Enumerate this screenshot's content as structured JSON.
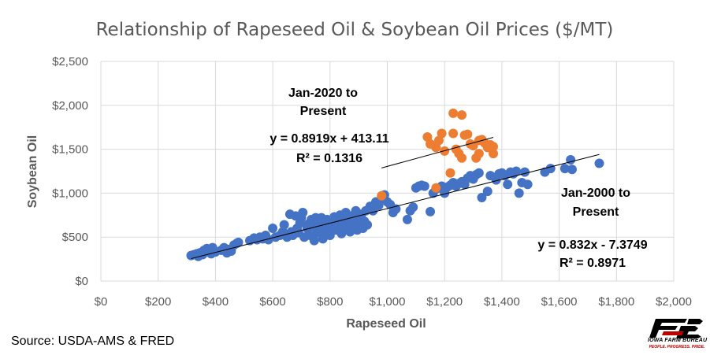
{
  "chart_data": {
    "type": "scatter",
    "title": "Relationship of Rapeseed Oil & Soybean Oil Prices ($/MT)",
    "xlabel": "Rapeseed Oil",
    "ylabel": "Soybean Oil",
    "xlim": [
      0,
      2000
    ],
    "ylim": [
      0,
      2500
    ],
    "xticks": [
      0,
      200,
      400,
      600,
      800,
      1000,
      1200,
      1400,
      1600,
      1800,
      2000
    ],
    "yticks": [
      0,
      500,
      1000,
      1500,
      2000,
      2500
    ],
    "xtick_labels": [
      "$0",
      "$200",
      "$400",
      "$600",
      "$800",
      "$1,000",
      "$1,200",
      "$1,400",
      "$1,600",
      "$1,800",
      "$2,000"
    ],
    "ytick_labels": [
      "$0",
      "$500",
      "$1,000",
      "$1,500",
      "$2,000",
      "$2,500"
    ],
    "grid": {
      "vertical": true,
      "horizontal": true
    },
    "series": [
      {
        "color": "#4472C4",
        "points": [
          [
            315,
            290
          ],
          [
            325,
            300
          ],
          [
            335,
            310
          ],
          [
            340,
            280
          ],
          [
            345,
            320
          ],
          [
            355,
            300
          ],
          [
            360,
            350
          ],
          [
            365,
            330
          ],
          [
            370,
            370
          ],
          [
            375,
            340
          ],
          [
            380,
            360
          ],
          [
            385,
            310
          ],
          [
            390,
            380
          ],
          [
            400,
            330
          ],
          [
            420,
            350
          ],
          [
            430,
            380
          ],
          [
            440,
            320
          ],
          [
            445,
            360
          ],
          [
            455,
            340
          ],
          [
            465,
            410
          ],
          [
            475,
            430
          ],
          [
            480,
            440
          ],
          [
            520,
            460
          ],
          [
            535,
            490
          ],
          [
            545,
            470
          ],
          [
            555,
            500
          ],
          [
            565,
            480
          ],
          [
            575,
            520
          ],
          [
            585,
            470
          ],
          [
            600,
            600
          ],
          [
            610,
            500
          ],
          [
            625,
            520
          ],
          [
            635,
            560
          ],
          [
            640,
            640
          ],
          [
            650,
            500
          ],
          [
            660,
            760
          ],
          [
            665,
            560
          ],
          [
            670,
            520
          ],
          [
            680,
            740
          ],
          [
            685,
            600
          ],
          [
            690,
            550
          ],
          [
            695,
            660
          ],
          [
            700,
            720
          ],
          [
            705,
            780
          ],
          [
            710,
            500
          ],
          [
            720,
            600
          ],
          [
            725,
            650
          ],
          [
            730,
            520
          ],
          [
            735,
            700
          ],
          [
            740,
            620
          ],
          [
            745,
            460
          ],
          [
            750,
            720
          ],
          [
            755,
            550
          ],
          [
            760,
            680
          ],
          [
            765,
            600
          ],
          [
            770,
            720
          ],
          [
            775,
            480
          ],
          [
            780,
            650
          ],
          [
            785,
            550
          ],
          [
            790,
            700
          ],
          [
            795,
            600
          ],
          [
            800,
            520
          ],
          [
            805,
            680
          ],
          [
            810,
            640
          ],
          [
            815,
            730
          ],
          [
            820,
            580
          ],
          [
            825,
            700
          ],
          [
            830,
            620
          ],
          [
            835,
            750
          ],
          [
            840,
            540
          ],
          [
            845,
            680
          ],
          [
            850,
            600
          ],
          [
            855,
            780
          ],
          [
            860,
            640
          ],
          [
            865,
            700
          ],
          [
            870,
            560
          ],
          [
            875,
            740
          ],
          [
            880,
            620
          ],
          [
            885,
            680
          ],
          [
            890,
            800
          ],
          [
            895,
            580
          ],
          [
            900,
            720
          ],
          [
            905,
            650
          ],
          [
            910,
            760
          ],
          [
            915,
            600
          ],
          [
            920,
            680
          ],
          [
            925,
            800
          ],
          [
            930,
            640
          ],
          [
            940,
            850
          ],
          [
            950,
            800
          ],
          [
            960,
            900
          ],
          [
            970,
            860
          ],
          [
            980,
            940
          ],
          [
            990,
            980
          ],
          [
            1000,
            900
          ],
          [
            1010,
            870
          ],
          [
            1020,
            780
          ],
          [
            1030,
            820
          ],
          [
            1070,
            700
          ],
          [
            1080,
            800
          ],
          [
            1090,
            840
          ],
          [
            1100,
            1060
          ],
          [
            1110,
            1080
          ],
          [
            1120,
            1090
          ],
          [
            1130,
            1080
          ],
          [
            1150,
            790
          ],
          [
            1160,
            1000
          ],
          [
            1170,
            1050
          ],
          [
            1180,
            1060
          ],
          [
            1190,
            1080
          ],
          [
            1200,
            1000
          ],
          [
            1210,
            1070
          ],
          [
            1220,
            1090
          ],
          [
            1230,
            1120
          ],
          [
            1240,
            1080
          ],
          [
            1250,
            1110
          ],
          [
            1260,
            1130
          ],
          [
            1270,
            1100
          ],
          [
            1280,
            1170
          ],
          [
            1290,
            1200
          ],
          [
            1300,
            1160
          ],
          [
            1310,
            1210
          ],
          [
            1320,
            1230
          ],
          [
            1330,
            950
          ],
          [
            1350,
            1020
          ],
          [
            1360,
            1200
          ],
          [
            1380,
            1150
          ],
          [
            1390,
            1220
          ],
          [
            1400,
            1230
          ],
          [
            1410,
            1200
          ],
          [
            1420,
            1100
          ],
          [
            1430,
            1240
          ],
          [
            1440,
            1220
          ],
          [
            1450,
            1250
          ],
          [
            1460,
            1000
          ],
          [
            1470,
            1120
          ],
          [
            1480,
            1240
          ],
          [
            1490,
            1100
          ],
          [
            1550,
            1240
          ],
          [
            1570,
            1280
          ],
          [
            1620,
            1280
          ],
          [
            1640,
            1380
          ],
          [
            1645,
            1270
          ],
          [
            1740,
            1340
          ]
        ]
      },
      {
        "color": "#ED7D31",
        "points": [
          [
            980,
            970
          ],
          [
            1170,
            1060
          ],
          [
            1140,
            1640
          ],
          [
            1150,
            1560
          ],
          [
            1170,
            1520
          ],
          [
            1180,
            1600
          ],
          [
            1190,
            1680
          ],
          [
            1200,
            1480
          ],
          [
            1220,
            1230
          ],
          [
            1230,
            1680
          ],
          [
            1230,
            1910
          ],
          [
            1240,
            1500
          ],
          [
            1250,
            1450
          ],
          [
            1260,
            1400
          ],
          [
            1260,
            1890
          ],
          [
            1270,
            1660
          ],
          [
            1280,
            1670
          ],
          [
            1290,
            1560
          ],
          [
            1300,
            1540
          ],
          [
            1310,
            1400
          ],
          [
            1320,
            1450
          ],
          [
            1320,
            1600
          ],
          [
            1330,
            1610
          ],
          [
            1340,
            1570
          ],
          [
            1350,
            1520
          ],
          [
            1360,
            1550
          ],
          [
            1370,
            1450
          ],
          [
            1370,
            1530
          ]
        ]
      }
    ],
    "trendlines": [
      {
        "slope": 0.832,
        "intercept": -7.3749,
        "x_range": [
          315,
          1740
        ]
      },
      {
        "slope": 0.8919,
        "intercept": 413.11,
        "x_range": [
          980,
          1370
        ]
      }
    ],
    "annotations": [
      {
        "line1": "Jan-2020 to",
        "line2": "Present",
        "eq": "y = 0.8919x + 413.11",
        "r2": "R² = 0.1316"
      },
      {
        "line1": "Jan-2000 to",
        "line2": "Present",
        "eq": "y = 0.832x - 7.3749",
        "r2": "R² = 0.8971"
      }
    ]
  },
  "source": "Source: USDA-AMS & FRED",
  "logo": {
    "text": "IOWA FARM BUREAU",
    "tagline": "PEOPLE. PROGRESS. PRIDE.",
    "accent_color": "#C00000"
  }
}
